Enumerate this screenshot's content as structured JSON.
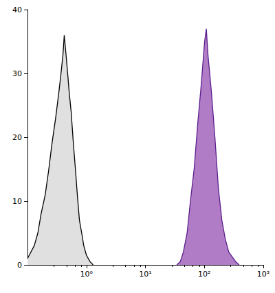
{
  "chart_data": {
    "type": "area",
    "log": "x",
    "grid": false,
    "xlim": [
      0.1,
      1000
    ],
    "xticks": [
      {
        "value": 1,
        "label": "10⁰"
      },
      {
        "value": 10,
        "label": "10¹"
      },
      {
        "value": 100,
        "label": "10²"
      },
      {
        "value": 1000,
        "label": "10³"
      }
    ],
    "ylim": [
      0,
      40
    ],
    "yticks": [
      0,
      10,
      20,
      30,
      40
    ],
    "series": [
      {
        "color": "#e0e0e0",
        "x": [
          0.1,
          0.13,
          0.15,
          0.17,
          0.2,
          0.23,
          0.26,
          0.3,
          0.34,
          0.37,
          0.4,
          0.42,
          0.44,
          0.48,
          0.51,
          0.55,
          0.6,
          0.65,
          0.7,
          0.76,
          0.83,
          0.9,
          1.0,
          1.15,
          1.3
        ],
        "values": [
          1,
          3,
          5,
          8,
          11,
          15,
          19,
          23,
          27,
          30,
          33,
          36,
          34,
          30,
          27,
          24,
          19,
          15,
          11,
          7,
          5,
          3,
          1.5,
          0.5,
          0
        ]
      },
      {
        "color": "#b07cc6",
        "x": [
          34,
          39,
          44,
          51,
          58,
          67,
          77,
          88,
          101,
          108,
          115,
          132,
          151,
          173,
          198,
          227,
          260,
          340,
          390
        ],
        "values": [
          0,
          0.5,
          2,
          5,
          10,
          15,
          22,
          28,
          35,
          37,
          33,
          27,
          20,
          12,
          7,
          4,
          2,
          0.5,
          0
        ]
      }
    ]
  }
}
